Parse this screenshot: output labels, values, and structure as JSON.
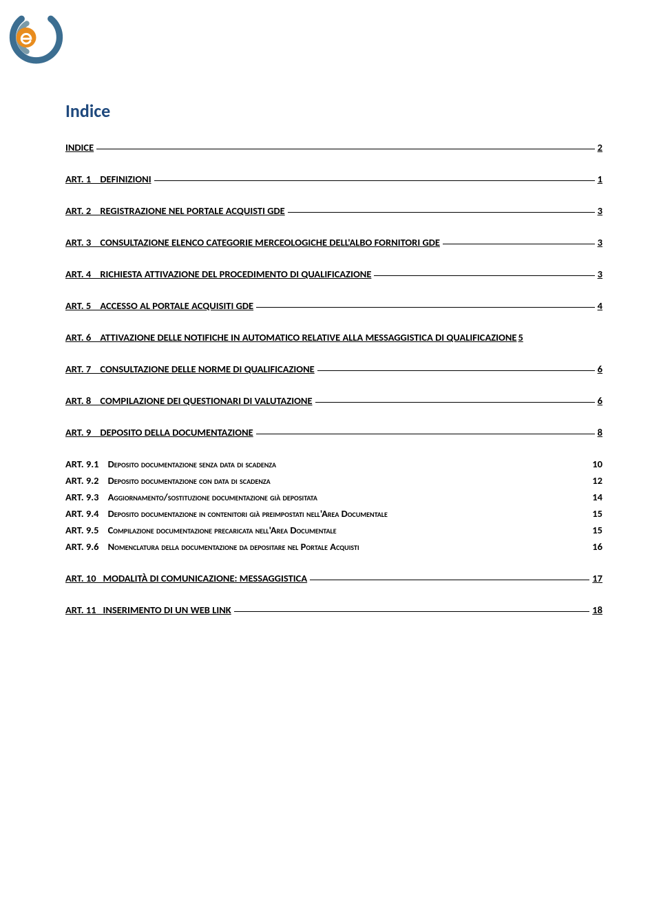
{
  "title": "Indice",
  "logo": {
    "arc_outer_color": "#3c6e91",
    "arc_inner_color": "#7a9aa8",
    "circle_fill": "#e88c1e",
    "e_color": "#ffffff"
  },
  "toc": [
    {
      "label": "INDICE",
      "page": "2"
    },
    {
      "label": "ART. 1    DEFINIZIONI",
      "page": "1"
    },
    {
      "label": "ART. 2    REGISTRAZIONE NEL PORTALE ACQUISTI GDE",
      "page": "3"
    },
    {
      "label": "ART. 3    CONSULTAZIONE ELENCO CATEGORIE MERCEOLOGICHE DELL'ALBO FORNITORI GDE",
      "page": "3"
    },
    {
      "label": "ART. 4    RICHIESTA ATTIVAZIONE DEL PROCEDIMENTO DI QUALIFICAZIONE",
      "page": "3"
    },
    {
      "label": "ART. 5    ACCESSO AL PORTALE ACQUISITI GDE",
      "page": "4"
    },
    {
      "label": "ART. 6    ATTIVAZIONE DELLE NOTIFICHE IN AUTOMATICO RELATIVE ALLA MESSAGGISTICA DI QUALIFICAZIONE",
      "page": "5",
      "noleader": true
    },
    {
      "label": "ART. 7    CONSULTAZIONE DELLE NORME DI QUALIFICAZIONE",
      "page": "6"
    },
    {
      "label": "ART. 8    COMPILAZIONE DEI QUESTIONARI DI VALUTAZIONE",
      "page": "6"
    },
    {
      "label": "ART. 9    DEPOSITO DELLA DOCUMENTAZIONE",
      "page": "8"
    }
  ],
  "sub": [
    {
      "prefix": "ART. 9.1",
      "text": "DEPOSITO DOCUMENTAZIONE SENZA DATA DI SCADENZA",
      "page": "10"
    },
    {
      "prefix": "ART. 9.2",
      "text": "DEPOSITO DOCUMENTAZIONE CON DATA DI SCADENZA",
      "page": "12"
    },
    {
      "prefix": "ART. 9.3",
      "text": "AGGIORNAMENTO/SOSTITUZIONE DOCUMENTAZIONE GIÀ DEPOSITATA",
      "page": "14"
    },
    {
      "prefix": "ART. 9.4",
      "text": "DEPOSITO DOCUMENTAZIONE IN CONTENITORI GIÀ PREIMPOSTATI NELL'AREA DOCUMENTALE",
      "page": "15"
    },
    {
      "prefix": "ART. 9.5",
      "text": "COMPILAZIONE DOCUMENTAZIONE PRECARICATA NELL'AREA DOCUMENTALE",
      "page": "15"
    },
    {
      "prefix": "ART. 9.6",
      "text": "NOMENCLATURA DELLA DOCUMENTAZIONE DA DEPOSITARE NEL PORTALE ACQUISTI",
      "page": "16"
    }
  ],
  "toc_after": [
    {
      "label": "ART. 10   MODALITÀ DI COMUNICAZIONE: MESSAGGISTICA",
      "page": "17"
    },
    {
      "label": "ART. 11   INSERIMENTO DI UN WEB LINK",
      "page": "18"
    }
  ]
}
